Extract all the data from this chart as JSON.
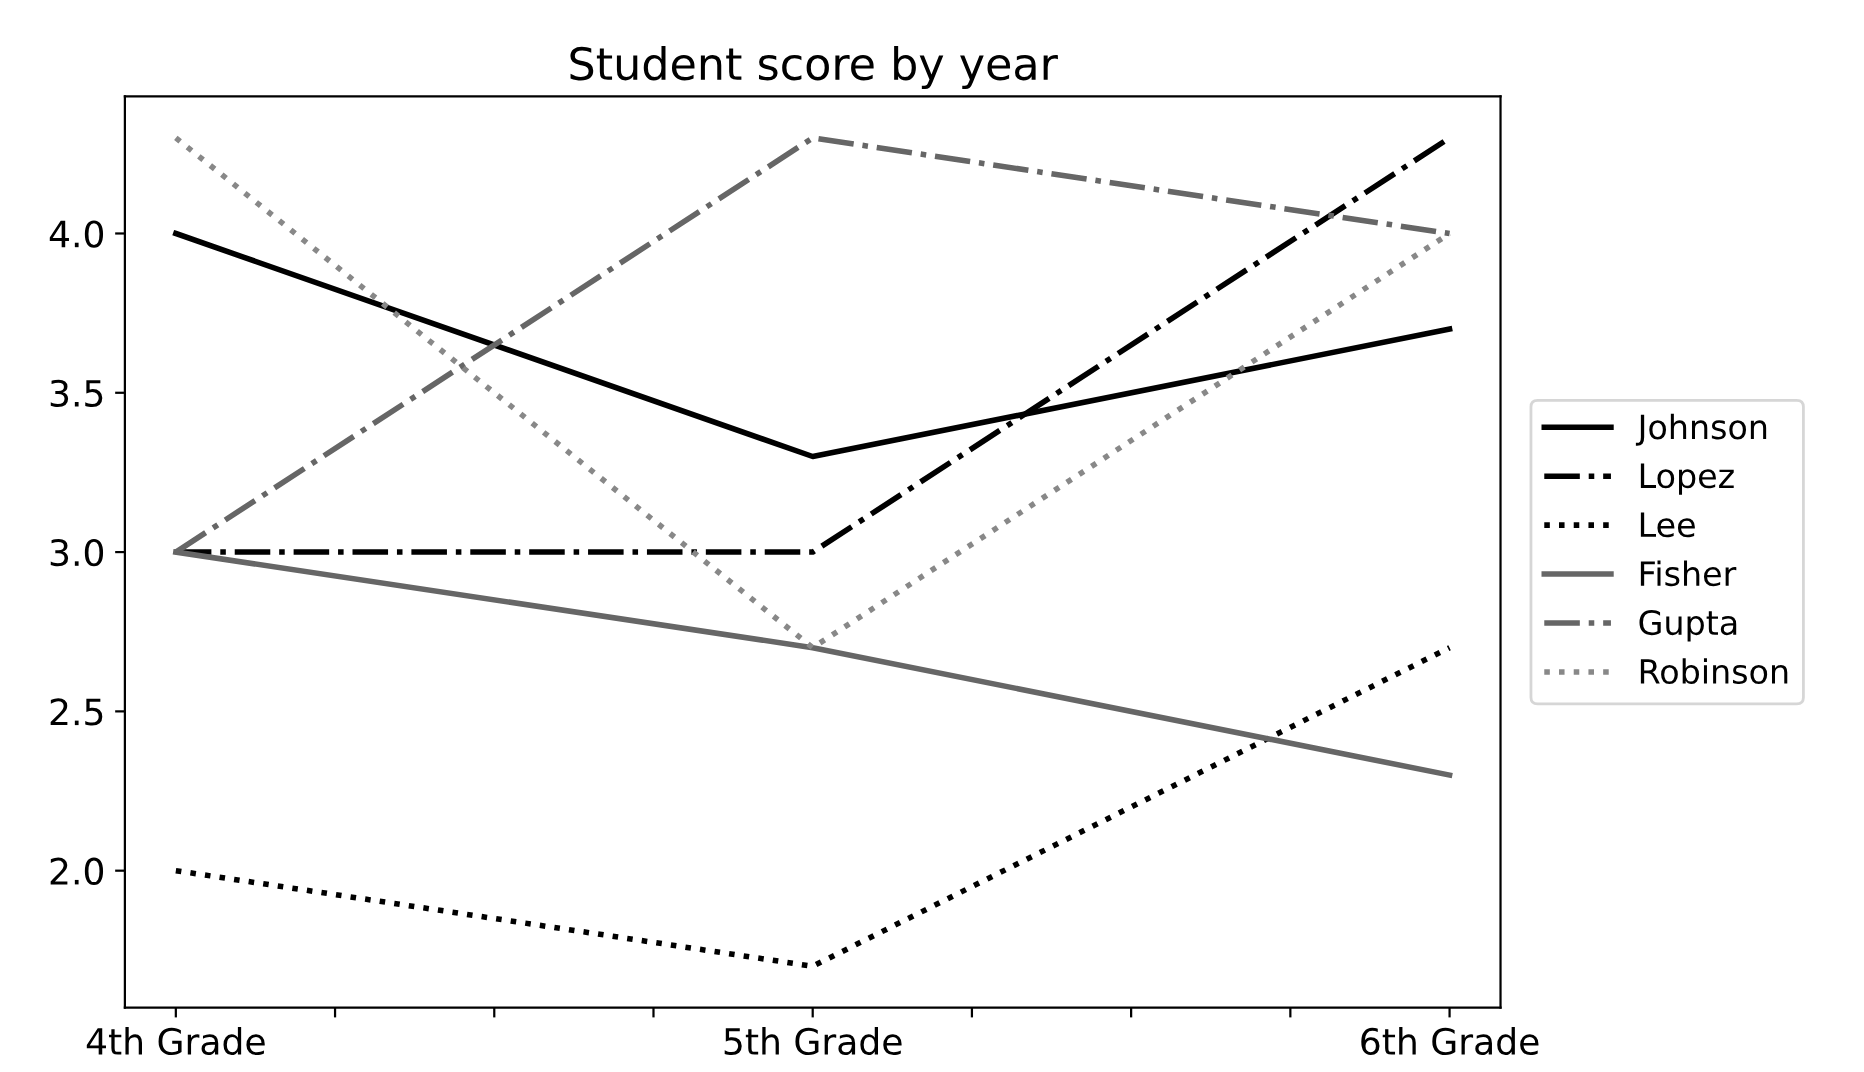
{
  "chart_data": {
    "type": "line",
    "title": "Student score by year",
    "categories": [
      "4th Grade",
      null,
      null,
      null,
      "5th Grade",
      null,
      null,
      null,
      "6th Grade"
    ],
    "series": [
      {
        "name": "Johnson",
        "color": "#000000",
        "line_style": "solid",
        "values": [
          4.0,
          null,
          null,
          null,
          3.3,
          null,
          null,
          null,
          3.7
        ]
      },
      {
        "name": "Lopez",
        "color": "#000000",
        "line_style": "dashdot",
        "values": [
          3.0,
          null,
          null,
          null,
          3.0,
          null,
          null,
          null,
          4.3
        ]
      },
      {
        "name": "Lee",
        "color": "#000000",
        "line_style": "dotted",
        "values": [
          2.0,
          null,
          null,
          null,
          1.7,
          null,
          null,
          null,
          2.7
        ]
      },
      {
        "name": "Fisher",
        "color": "#666666",
        "line_style": "solid",
        "values": [
          3.0,
          null,
          null,
          null,
          2.7,
          null,
          null,
          null,
          2.3
        ]
      },
      {
        "name": "Gupta",
        "color": "#666666",
        "line_style": "dashdot",
        "values": [
          3.0,
          null,
          null,
          null,
          4.3,
          null,
          null,
          null,
          4.0
        ]
      },
      {
        "name": "Robinson",
        "color": "#888888",
        "line_style": "dotted",
        "values": [
          4.3,
          null,
          null,
          null,
          2.7,
          null,
          null,
          null,
          4.0
        ]
      }
    ],
    "ylim": [
      1.57,
      4.43
    ],
    "yticks": [
      {
        "value": 2.0,
        "label": "2.0"
      },
      {
        "value": 2.5,
        "label": "2.5"
      },
      {
        "value": 3.0,
        "label": "3.0"
      },
      {
        "value": 3.5,
        "label": "3.5"
      },
      {
        "value": 4.0,
        "label": "4.0"
      }
    ],
    "grid": false,
    "legend": "right",
    "marker": "none"
  }
}
